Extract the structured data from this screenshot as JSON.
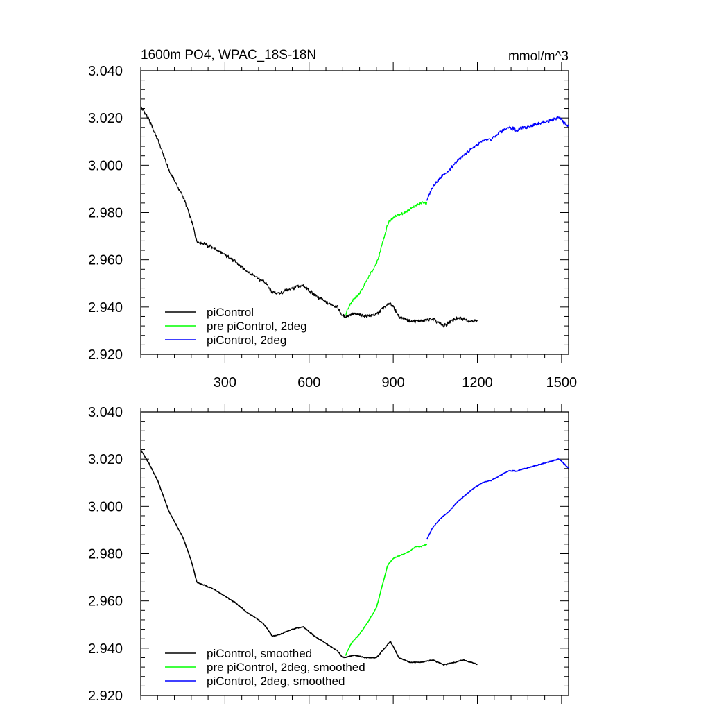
{
  "colors": {
    "picontrol": "#000000",
    "pre_picontrol_2deg": "#00ff00",
    "picontrol_2deg": "#0000ff",
    "axes": "#000000",
    "background": "#ffffff"
  },
  "chart_data": [
    {
      "type": "line",
      "title": "1600m PO4, WPAC_18S-18N",
      "units": "mmol/m^3",
      "xlim": [
        0,
        1525
      ],
      "ylim": [
        2.92,
        3.04
      ],
      "xticks": [
        300,
        600,
        900,
        1200,
        1500
      ],
      "xtick_labels": [
        "300",
        "600",
        "900",
        "1200",
        "1500"
      ],
      "yticks": [
        2.92,
        2.94,
        2.96,
        2.98,
        3.0,
        3.02,
        3.04
      ],
      "ytick_labels": [
        "2.920",
        "2.940",
        "2.960",
        "2.980",
        "3.000",
        "3.020",
        "3.040"
      ],
      "legend_position": "bottom-left",
      "grid": false,
      "series": [
        {
          "name": "piControl",
          "color": "#000000",
          "x": [
            0,
            30,
            60,
            100,
            150,
            180,
            200,
            220,
            260,
            300,
            340,
            380,
            420,
            440,
            470,
            500,
            540,
            580,
            620,
            660,
            700,
            720,
            760,
            800,
            840,
            870,
            890,
            920,
            960,
            1000,
            1040,
            1080,
            1120,
            1150,
            1180,
            1200
          ],
          "y": [
            3.025,
            3.019,
            3.011,
            2.998,
            2.987,
            2.977,
            2.968,
            2.967,
            2.965,
            2.962,
            2.959,
            2.955,
            2.952,
            2.951,
            2.946,
            2.946,
            2.948,
            2.949,
            2.945,
            2.942,
            2.94,
            2.936,
            2.937,
            2.936,
            2.937,
            2.94,
            2.942,
            2.936,
            2.934,
            2.934,
            2.935,
            2.932,
            2.935,
            2.935,
            2.934,
            2.934
          ]
        },
        {
          "name": "pre piControl, 2deg",
          "color": "#00ff00",
          "x": [
            730,
            750,
            780,
            810,
            840,
            860,
            880,
            900,
            920,
            940,
            960,
            980,
            1000,
            1020
          ],
          "y": [
            2.937,
            2.942,
            2.946,
            2.952,
            2.958,
            2.966,
            2.975,
            2.978,
            2.979,
            2.98,
            2.981,
            2.983,
            2.984,
            2.984
          ]
        },
        {
          "name": "piControl, 2deg",
          "color": "#0000ff",
          "x": [
            1020,
            1040,
            1070,
            1100,
            1130,
            1160,
            1190,
            1220,
            1250,
            1280,
            1310,
            1340,
            1370,
            1400,
            1430,
            1460,
            1490,
            1510,
            1525
          ],
          "y": [
            2.985,
            2.991,
            2.995,
            2.998,
            3.002,
            3.005,
            3.008,
            3.01,
            3.011,
            3.014,
            3.016,
            3.015,
            3.016,
            3.017,
            3.018,
            3.019,
            3.02,
            3.018,
            3.016
          ]
        }
      ]
    },
    {
      "type": "line",
      "xlim": [
        0,
        1525
      ],
      "ylim": [
        2.92,
        3.04
      ],
      "xticks": [
        300,
        600,
        900,
        1200,
        1500
      ],
      "yticks": [
        2.92,
        2.94,
        2.96,
        2.98,
        3.0,
        3.02,
        3.04
      ],
      "ytick_labels": [
        "2.920",
        "2.940",
        "2.960",
        "2.980",
        "3.000",
        "3.020",
        "3.040"
      ],
      "legend_position": "bottom-left",
      "grid": false,
      "series": [
        {
          "name": "piControl, smoothed",
          "color": "#000000",
          "x": [
            0,
            30,
            60,
            100,
            150,
            180,
            200,
            220,
            260,
            300,
            340,
            380,
            420,
            440,
            470,
            500,
            540,
            580,
            620,
            660,
            700,
            720,
            760,
            800,
            840,
            870,
            890,
            920,
            960,
            1000,
            1040,
            1080,
            1120,
            1150,
            1180,
            1200
          ],
          "y": [
            3.024,
            3.018,
            3.011,
            2.998,
            2.987,
            2.977,
            2.968,
            2.967,
            2.965,
            2.962,
            2.959,
            2.955,
            2.952,
            2.95,
            2.945,
            2.946,
            2.948,
            2.949,
            2.945,
            2.942,
            2.939,
            2.936,
            2.937,
            2.936,
            2.936,
            2.94,
            2.943,
            2.936,
            2.934,
            2.934,
            2.935,
            2.933,
            2.934,
            2.935,
            2.934,
            2.933
          ]
        },
        {
          "name": "pre piControl, 2deg, smoothed",
          "color": "#00ff00",
          "x": [
            730,
            750,
            780,
            810,
            840,
            860,
            880,
            900,
            920,
            940,
            960,
            980,
            1000,
            1020
          ],
          "y": [
            2.937,
            2.942,
            2.946,
            2.951,
            2.957,
            2.966,
            2.975,
            2.978,
            2.979,
            2.98,
            2.981,
            2.983,
            2.983,
            2.984
          ]
        },
        {
          "name": "piControl, 2deg, smoothed",
          "color": "#0000ff",
          "x": [
            1020,
            1040,
            1070,
            1100,
            1130,
            1160,
            1190,
            1220,
            1250,
            1280,
            1310,
            1340,
            1370,
            1400,
            1430,
            1460,
            1490,
            1510,
            1525
          ],
          "y": [
            2.986,
            2.991,
            2.995,
            2.998,
            3.002,
            3.005,
            3.008,
            3.01,
            3.011,
            3.013,
            3.015,
            3.015,
            3.016,
            3.017,
            3.018,
            3.019,
            3.02,
            3.018,
            3.016
          ]
        }
      ]
    }
  ]
}
